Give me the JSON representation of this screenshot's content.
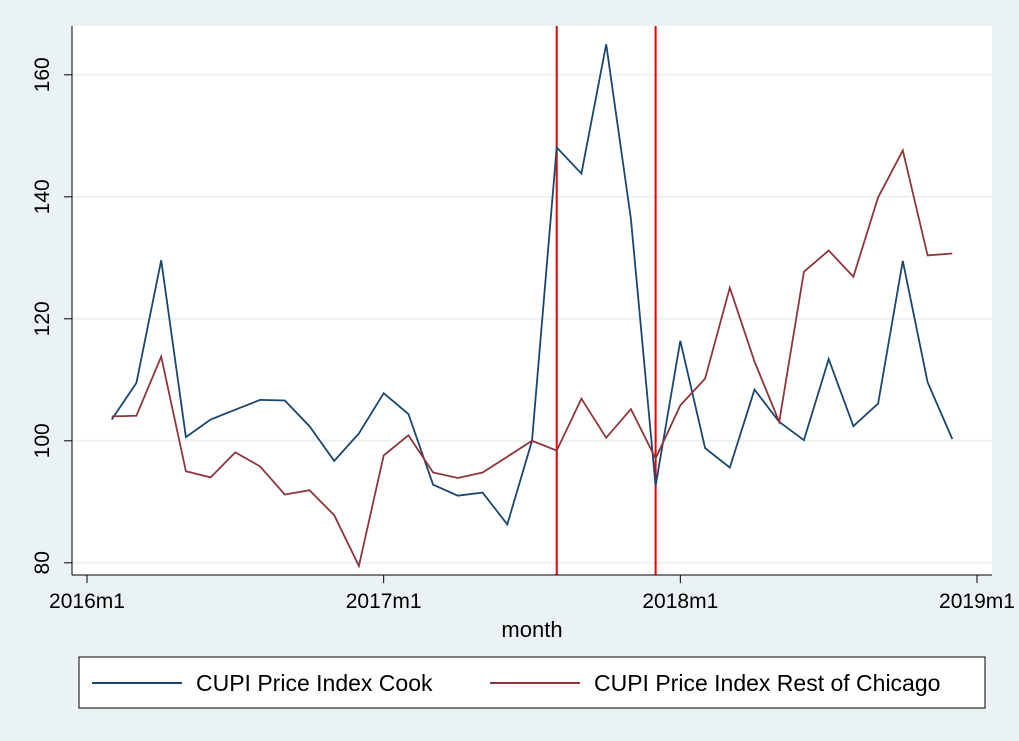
{
  "chart_data": {
    "type": "line",
    "title": "",
    "xlabel": "month",
    "ylabel": "",
    "xlim": [
      "2016-01",
      "2019-01"
    ],
    "ylim": [
      78,
      168
    ],
    "x_ticks": [
      {
        "month": "2016-01",
        "label": "2016m1"
      },
      {
        "month": "2017-01",
        "label": "2017m1"
      },
      {
        "month": "2018-01",
        "label": "2018m1"
      },
      {
        "month": "2019-01",
        "label": "2019m1"
      }
    ],
    "y_ticks": [
      80,
      100,
      120,
      140,
      160
    ],
    "grid": true,
    "legend_position": "bottom",
    "x": [
      "2016-02",
      "2016-03",
      "2016-04",
      "2016-05",
      "2016-06",
      "2016-07",
      "2016-08",
      "2016-09",
      "2016-10",
      "2016-11",
      "2016-12",
      "2017-01",
      "2017-02",
      "2017-03",
      "2017-04",
      "2017-05",
      "2017-06",
      "2017-07",
      "2017-08",
      "2017-09",
      "2017-10",
      "2017-11",
      "2017-12",
      "2018-01",
      "2018-02",
      "2018-03",
      "2018-04",
      "2018-05",
      "2018-06",
      "2018-07",
      "2018-08",
      "2018-09",
      "2018-10",
      "2018-11",
      "2018-12"
    ],
    "series": [
      {
        "name": "CUPI Price Index Cook",
        "color": "#1a476f",
        "values": [
          103.5,
          109.5,
          129.6,
          100.6,
          103.5,
          105.1,
          106.7,
          106.6,
          102.4,
          96.7,
          101.2,
          107.8,
          104.4,
          92.8,
          91.0,
          91.5,
          86.3,
          100.0,
          148.1,
          143.8,
          165.0,
          136.4,
          92.6,
          116.4,
          98.8,
          95.6,
          108.4,
          103.1,
          100.1,
          113.4,
          102.4,
          106.1,
          129.5,
          109.6,
          100.3
        ]
      },
      {
        "name": "CUPI Price Index Rest of Chicago",
        "color": "#90353b",
        "values": [
          104.0,
          104.1,
          113.8,
          95.0,
          94.0,
          98.1,
          95.8,
          91.2,
          91.9,
          87.8,
          79.5,
          97.6,
          100.9,
          94.8,
          93.9,
          94.8,
          97.4,
          100.0,
          98.4,
          106.9,
          100.5,
          105.2,
          97.1,
          105.8,
          110.2,
          125.1,
          113.0,
          103.1,
          127.7,
          131.2,
          126.9,
          139.9,
          147.6,
          130.4,
          130.7
        ]
      }
    ],
    "reference_lines": [
      {
        "x": "2017-08",
        "color": "#ee0000"
      },
      {
        "x": "2017-12",
        "color": "#ee0000"
      }
    ]
  }
}
